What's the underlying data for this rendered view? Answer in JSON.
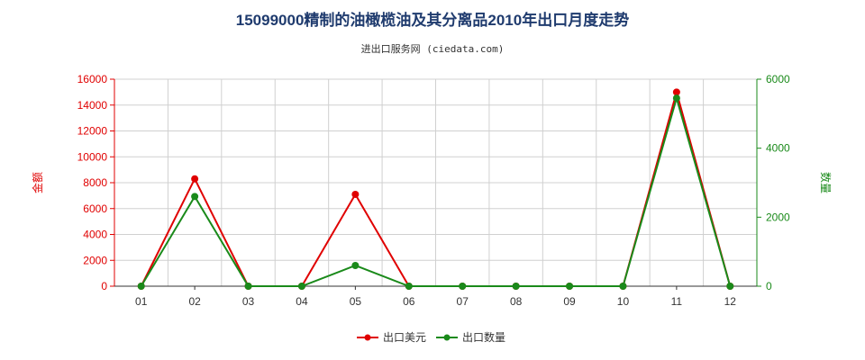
{
  "title": "15099000精制的油橄榄油及其分离品2010年出口月度走势",
  "subtitle": "进出口服务网 (ciedata.com)",
  "colors": {
    "left_axis": "#e00000",
    "right_axis": "#1a8a1a",
    "grid": "#d0d0d0",
    "axis": "#333333"
  },
  "chart_data": {
    "type": "line",
    "categories": [
      "01",
      "02",
      "03",
      "04",
      "05",
      "06",
      "07",
      "08",
      "09",
      "10",
      "11",
      "12"
    ],
    "series": [
      {
        "name": "出口美元",
        "axis": "left",
        "color": "#e00000",
        "values": [
          0,
          8300,
          0,
          0,
          7100,
          0,
          0,
          0,
          0,
          0,
          15000,
          0
        ]
      },
      {
        "name": "出口数量",
        "axis": "right",
        "color": "#1a8a1a",
        "values": [
          0,
          2600,
          0,
          0,
          600,
          0,
          0,
          0,
          0,
          0,
          5450,
          0
        ]
      }
    ],
    "ylabel": "金额",
    "y2label": "数量",
    "ylim": [
      0,
      16000
    ],
    "y2lim": [
      0,
      6000
    ],
    "yticks": [
      0,
      2000,
      4000,
      6000,
      8000,
      10000,
      12000,
      14000,
      16000
    ],
    "y2ticks": [
      0,
      2000,
      4000,
      6000
    ],
    "grid": true,
    "legend_position": "bottom-center"
  }
}
